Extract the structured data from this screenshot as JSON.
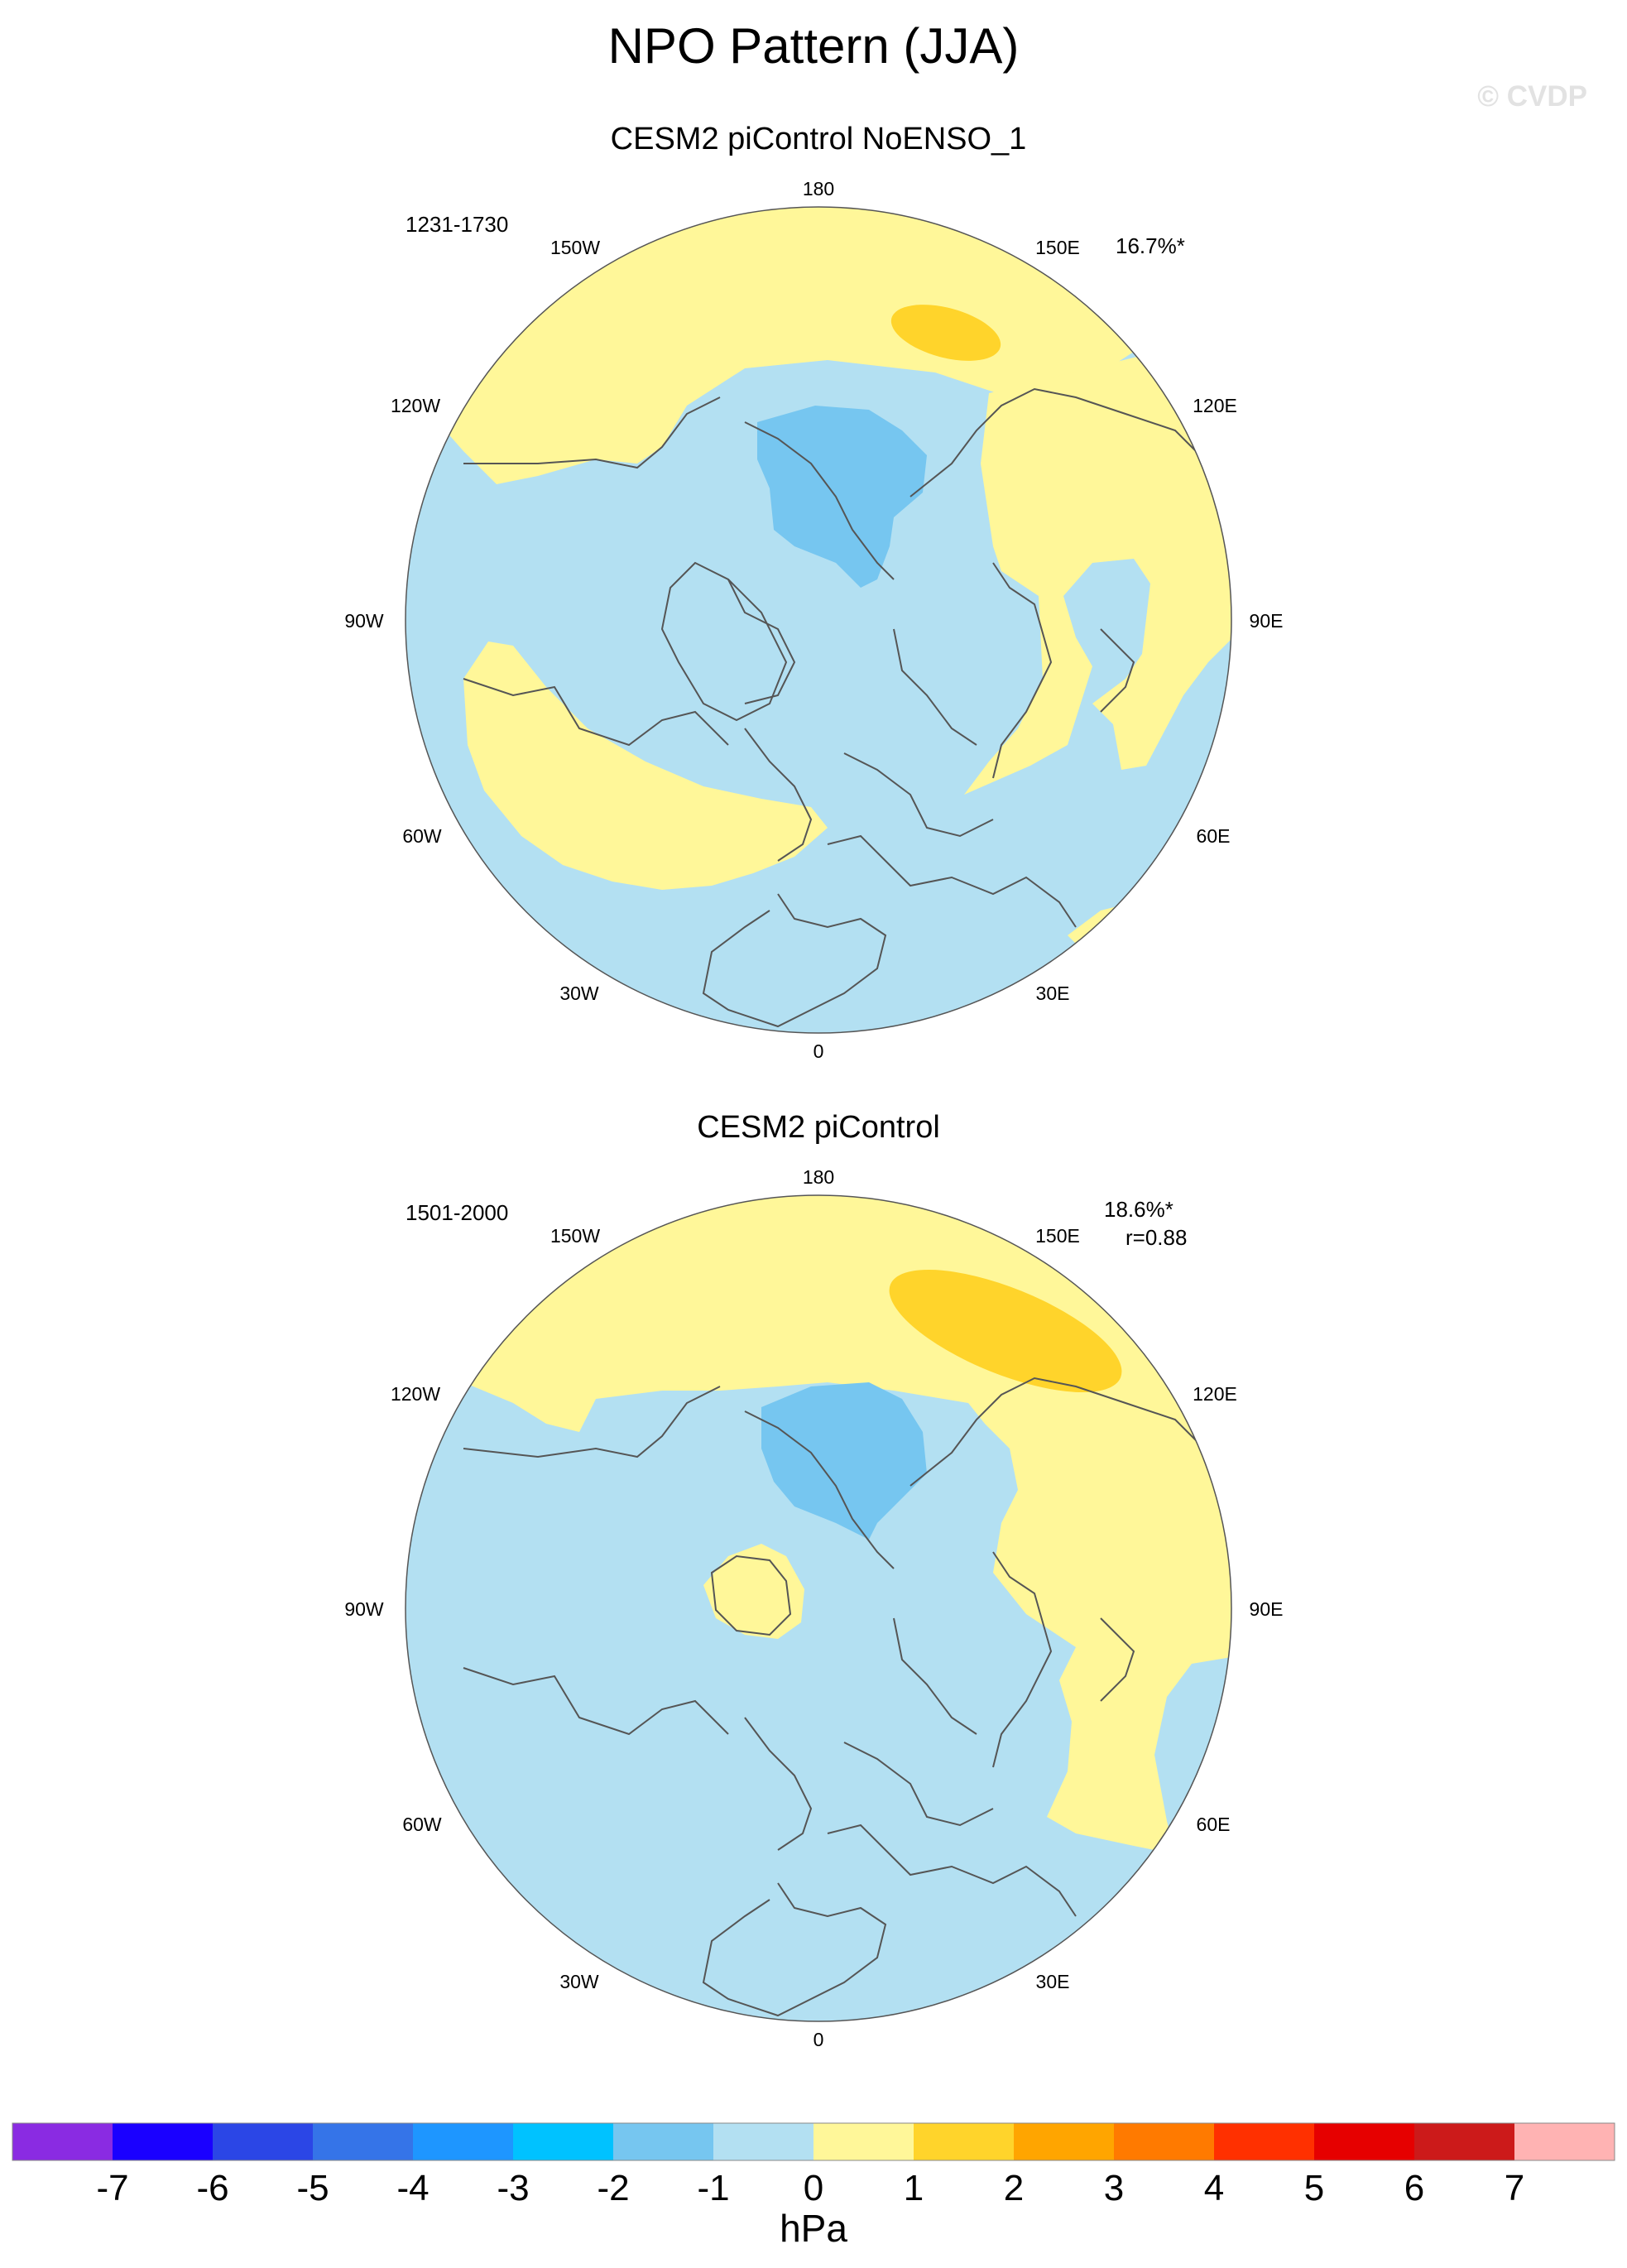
{
  "figure": {
    "title": "NPO Pattern (JJA)",
    "watermark": "© CVDP",
    "colorbar_unit": "hPa"
  },
  "panels": [
    {
      "title": "CESM2 piControl NoENSO_1",
      "period": "1231-1730",
      "variance": "16.7%*",
      "corr": ""
    },
    {
      "title": "CESM2 piControl",
      "period": "1501-2000",
      "variance": "18.6%*",
      "corr": "r=0.88"
    }
  ],
  "longitude_labels": [
    "180",
    "150E",
    "120E",
    "90E",
    "60E",
    "30E",
    "0",
    "30W",
    "60W",
    "90W",
    "120W",
    "150W"
  ],
  "colorbar": {
    "ticks": [
      "-7",
      "-6",
      "-5",
      "-4",
      "-3",
      "-2",
      "-1",
      "0",
      "1",
      "2",
      "3",
      "4",
      "5",
      "6",
      "7"
    ],
    "colors": [
      "#8a2be2",
      "#1a00ff",
      "#2b46e6",
      "#3574e8",
      "#1e96ff",
      "#00c2ff",
      "#76c6f0",
      "#b3e0f2",
      "#fff799",
      "#ffd42b",
      "#ffa500",
      "#ff7a00",
      "#ff3000",
      "#e60000",
      "#cc1a1a",
      "#ffb3b3"
    ]
  },
  "map_colors": {
    "ocean_neg1": "#b3e0f2",
    "neg2": "#76c6f0",
    "pos1": "#fff799",
    "pos2": "#ffd42b",
    "coast": "#555555"
  }
}
